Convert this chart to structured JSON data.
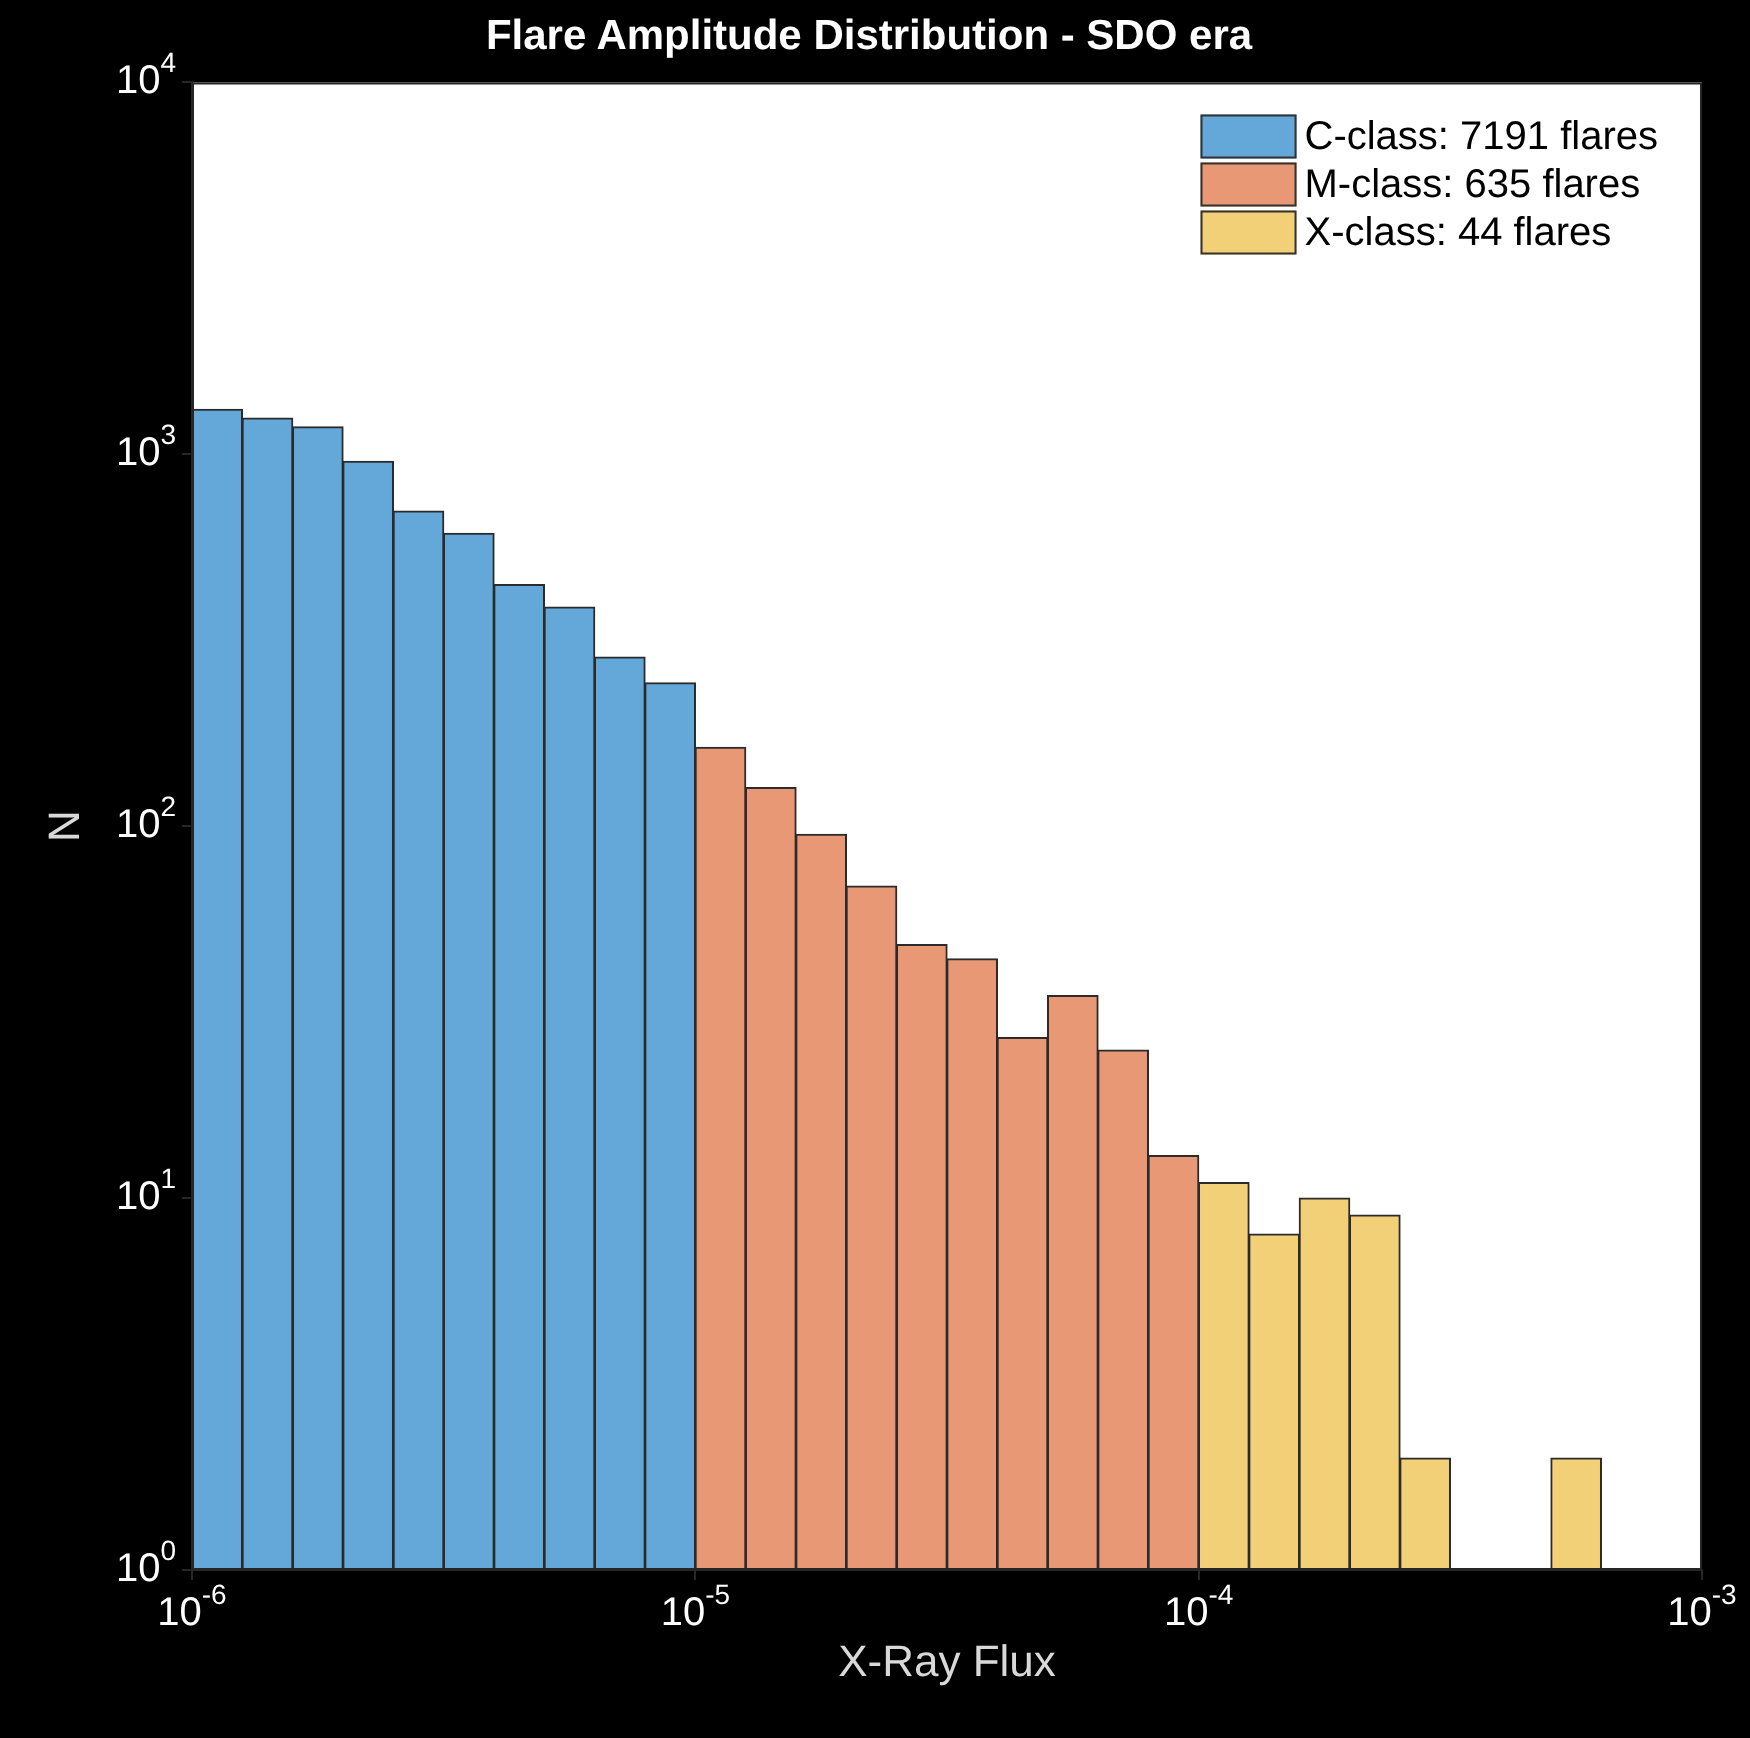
{
  "chart_data": {
    "type": "histogram",
    "title": "Flare Amplitude Distribution - SDO era",
    "xlabel": "X-Ray Flux",
    "ylabel": "N",
    "bins": [
      1e-06,
      1.2589e-06,
      1.5849e-06,
      1.9953e-06,
      2.5119e-06,
      3.1623e-06,
      3.9811e-06,
      5.0119e-06,
      6.3096e-06,
      7.9433e-06,
      1e-05,
      1.2589e-05,
      1.5849e-05,
      1.9953e-05,
      2.5119e-05,
      3.1623e-05,
      3.9811e-05,
      5.0119e-05,
      6.3096e-05,
      7.9433e-05,
      0.0001,
      0.00012589,
      0.00015849,
      0.00019953,
      0.00025119,
      0.00031623,
      0.00039811,
      0.00050119,
      0.00063096,
      0.00079433,
      0.001
    ],
    "series": [
      {
        "name": "C-class: 7191 flares",
        "color": "#63a8d8",
        "values": [
          1320,
          1250,
          1185,
          957,
          703,
          613,
          446,
          388,
          285,
          243,
          null,
          null,
          null,
          null,
          null,
          null,
          null,
          null,
          null,
          null,
          null,
          null,
          null,
          null,
          null,
          null,
          null,
          null,
          null,
          null
        ]
      },
      {
        "name": "M-class: 635 flares",
        "color": "#e89874",
        "values": [
          null,
          null,
          null,
          null,
          null,
          null,
          null,
          null,
          null,
          null,
          163,
          127,
          95,
          69,
          48,
          44,
          27,
          35,
          25,
          13,
          null,
          null,
          null,
          null,
          null,
          null,
          null,
          null,
          null,
          null
        ]
      },
      {
        "name": "X-class: 44 flares",
        "color": "#f2d078",
        "values": [
          null,
          null,
          null,
          null,
          null,
          null,
          null,
          null,
          null,
          null,
          null,
          null,
          null,
          null,
          null,
          null,
          null,
          null,
          null,
          null,
          11,
          8,
          10,
          9,
          2,
          null,
          null,
          2,
          null,
          null
        ]
      }
    ],
    "log": "xy",
    "xlim": [
      1e-06,
      0.001
    ],
    "ylim": [
      1,
      10000
    ],
    "xticks": [
      {
        "value": 1e-06,
        "label": "10$^{-6}$"
      },
      {
        "value": 1e-05,
        "label": "10$^{-5}$"
      },
      {
        "value": 0.0001,
        "label": "10$^{-4}$"
      },
      {
        "value": 0.001,
        "label": "10$^{-3}$"
      }
    ],
    "yticks": [
      {
        "value": 1,
        "label": "10$^{0}$"
      },
      {
        "value": 10,
        "label": "10$^{1}$"
      },
      {
        "value": 100,
        "label": "10$^{2}$"
      },
      {
        "value": 1000,
        "label": "10$^{3}$"
      },
      {
        "value": 10000,
        "label": "10$^{4}$"
      }
    ],
    "grid": false,
    "legend": "top right"
  }
}
